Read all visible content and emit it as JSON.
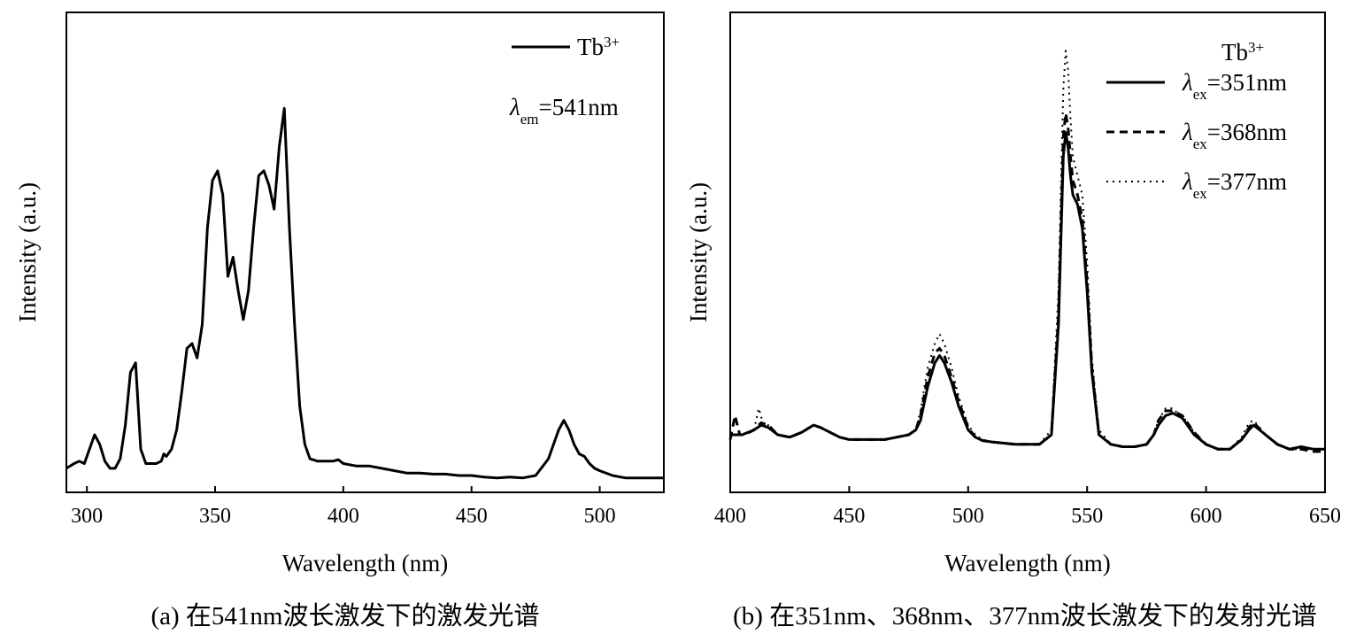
{
  "chart_data": [
    {
      "type": "line",
      "panel": "a",
      "xlabel": "Wavelength (nm)",
      "ylabel": "Intensity (a.u.)",
      "xlim": [
        292,
        525
      ],
      "ylim": [
        0,
        1.0
      ],
      "xticks": [
        300,
        350,
        400,
        450,
        500
      ],
      "y_tick_labels": false,
      "legend": {
        "placement": "top-right",
        "entries": [
          {
            "base": "Tb",
            "sup": "3+",
            "dash": "solid"
          }
        ],
        "note": {
          "symbol": "λ",
          "sub": "em",
          "value": "=541nm"
        }
      },
      "caption": "(a) 在541nm波长激发下的激发光谱",
      "series": [
        {
          "dash": "solid",
          "x": [
            292,
            295,
            297,
            299,
            301,
            303,
            305,
            307,
            309,
            311,
            313,
            315,
            317,
            319,
            321,
            323,
            325,
            327,
            329,
            330,
            331,
            333,
            335,
            337,
            339,
            341,
            343,
            345,
            347,
            349,
            351,
            353,
            355,
            357,
            359,
            361,
            363,
            365,
            367,
            369,
            371,
            373,
            375,
            377,
            379,
            381,
            383,
            385,
            387,
            390,
            393,
            396,
            398,
            400,
            405,
            410,
            415,
            420,
            425,
            430,
            435,
            440,
            445,
            450,
            455,
            460,
            465,
            470,
            475,
            480,
            482,
            484,
            486,
            488,
            490,
            492,
            494,
            496,
            498,
            500,
            505,
            510,
            515,
            520,
            525
          ],
          "y": [
            0.05,
            0.06,
            0.065,
            0.06,
            0.09,
            0.12,
            0.1,
            0.065,
            0.05,
            0.05,
            0.07,
            0.14,
            0.25,
            0.27,
            0.09,
            0.06,
            0.06,
            0.06,
            0.065,
            0.08,
            0.075,
            0.09,
            0.13,
            0.21,
            0.3,
            0.31,
            0.28,
            0.35,
            0.55,
            0.65,
            0.67,
            0.62,
            0.45,
            0.49,
            0.42,
            0.36,
            0.42,
            0.55,
            0.66,
            0.67,
            0.64,
            0.59,
            0.72,
            0.8,
            0.55,
            0.35,
            0.18,
            0.1,
            0.07,
            0.065,
            0.065,
            0.065,
            0.068,
            0.06,
            0.055,
            0.055,
            0.05,
            0.045,
            0.04,
            0.04,
            0.038,
            0.038,
            0.035,
            0.035,
            0.032,
            0.03,
            0.032,
            0.03,
            0.035,
            0.07,
            0.1,
            0.13,
            0.15,
            0.13,
            0.1,
            0.08,
            0.075,
            0.06,
            0.05,
            0.045,
            0.035,
            0.03,
            0.03,
            0.03,
            0.03
          ]
        }
      ]
    },
    {
      "type": "line",
      "panel": "b",
      "xlabel": "Wavelength (nm)",
      "ylabel": "Intensity (a.u.)",
      "xlim": [
        400,
        650
      ],
      "ylim": [
        0,
        1.0
      ],
      "xticks": [
        400,
        450,
        500,
        550,
        600,
        650
      ],
      "y_tick_labels": false,
      "legend": {
        "placement": "top-right",
        "title": {
          "base": "Tb",
          "sup": "3+"
        },
        "entries": [
          {
            "symbol": "λ",
            "sub": "ex",
            "value": "=351nm",
            "dash": "solid"
          },
          {
            "symbol": "λ",
            "sub": "ex",
            "value": "=368nm",
            "dash": "dashed"
          },
          {
            "symbol": "λ",
            "sub": "ex",
            "value": "=377nm",
            "dash": "dotted"
          }
        ]
      },
      "caption": "(b) 在351nm、368nm、377nm波长激发下的发射光谱",
      "series": [
        {
          "dash": "solid",
          "x": [
            400,
            405,
            410,
            413,
            416,
            420,
            425,
            430,
            435,
            438,
            442,
            446,
            450,
            455,
            460,
            465,
            470,
            475,
            478,
            480,
            483,
            486,
            488,
            490,
            493,
            496,
            500,
            503,
            506,
            510,
            520,
            530,
            535,
            538,
            540,
            541,
            542,
            543,
            544,
            546,
            548,
            550,
            552,
            555,
            560,
            565,
            570,
            575,
            578,
            580,
            583,
            586,
            588,
            590,
            595,
            600,
            605,
            610,
            615,
            618,
            620,
            625,
            630,
            635,
            640,
            645,
            650
          ],
          "y": [
            0.12,
            0.12,
            0.13,
            0.14,
            0.135,
            0.12,
            0.115,
            0.125,
            0.14,
            0.135,
            0.125,
            0.115,
            0.11,
            0.11,
            0.11,
            0.11,
            0.115,
            0.12,
            0.13,
            0.15,
            0.22,
            0.27,
            0.285,
            0.27,
            0.23,
            0.18,
            0.13,
            0.115,
            0.108,
            0.105,
            0.1,
            0.1,
            0.12,
            0.35,
            0.7,
            0.75,
            0.72,
            0.66,
            0.62,
            0.6,
            0.55,
            0.42,
            0.25,
            0.12,
            0.1,
            0.095,
            0.095,
            0.1,
            0.12,
            0.14,
            0.16,
            0.165,
            0.16,
            0.155,
            0.12,
            0.1,
            0.09,
            0.09,
            0.11,
            0.13,
            0.14,
            0.12,
            0.1,
            0.09,
            0.095,
            0.09,
            0.09
          ]
        },
        {
          "dash": "dashed",
          "x": [
            400,
            402,
            404,
            406,
            410,
            413,
            416,
            420,
            425,
            430,
            435,
            438,
            442,
            446,
            450,
            455,
            460,
            465,
            470,
            475,
            478,
            480,
            483,
            486,
            488,
            490,
            493,
            496,
            500,
            503,
            506,
            510,
            520,
            530,
            535,
            538,
            540,
            541,
            542,
            543,
            544,
            546,
            548,
            550,
            552,
            555,
            560,
            565,
            570,
            575,
            578,
            580,
            583,
            586,
            588,
            590,
            595,
            600,
            605,
            610,
            615,
            618,
            620,
            625,
            630,
            635,
            640,
            645,
            650
          ],
          "y": [
            0.11,
            0.16,
            0.12,
            0.12,
            0.13,
            0.145,
            0.14,
            0.12,
            0.115,
            0.125,
            0.14,
            0.135,
            0.125,
            0.115,
            0.11,
            0.11,
            0.11,
            0.11,
            0.115,
            0.12,
            0.13,
            0.16,
            0.24,
            0.29,
            0.3,
            0.285,
            0.24,
            0.19,
            0.135,
            0.115,
            0.108,
            0.105,
            0.1,
            0.1,
            0.12,
            0.37,
            0.74,
            0.79,
            0.76,
            0.7,
            0.65,
            0.62,
            0.57,
            0.44,
            0.26,
            0.12,
            0.1,
            0.095,
            0.095,
            0.1,
            0.12,
            0.15,
            0.17,
            0.17,
            0.165,
            0.16,
            0.125,
            0.1,
            0.09,
            0.09,
            0.11,
            0.135,
            0.145,
            0.12,
            0.1,
            0.09,
            0.09,
            0.085,
            0.085
          ]
        },
        {
          "dash": "dotted",
          "x": [
            400,
            405,
            410,
            412,
            414,
            416,
            420,
            425,
            430,
            435,
            438,
            442,
            446,
            450,
            455,
            460,
            465,
            470,
            475,
            478,
            480,
            483,
            486,
            488,
            490,
            493,
            496,
            500,
            503,
            506,
            510,
            520,
            530,
            535,
            538,
            540,
            541,
            542,
            543,
            544,
            546,
            548,
            550,
            552,
            555,
            560,
            565,
            570,
            575,
            578,
            580,
            583,
            586,
            588,
            590,
            595,
            600,
            605,
            610,
            615,
            618,
            620,
            625,
            630,
            635,
            640,
            645,
            650
          ],
          "y": [
            0.12,
            0.12,
            0.13,
            0.175,
            0.14,
            0.14,
            0.12,
            0.115,
            0.125,
            0.14,
            0.135,
            0.125,
            0.115,
            0.11,
            0.11,
            0.11,
            0.11,
            0.115,
            0.12,
            0.13,
            0.17,
            0.26,
            0.31,
            0.33,
            0.31,
            0.26,
            0.2,
            0.14,
            0.12,
            0.11,
            0.105,
            0.1,
            0.1,
            0.13,
            0.42,
            0.84,
            0.92,
            0.88,
            0.78,
            0.7,
            0.66,
            0.62,
            0.48,
            0.28,
            0.13,
            0.1,
            0.095,
            0.095,
            0.1,
            0.12,
            0.15,
            0.175,
            0.175,
            0.165,
            0.16,
            0.125,
            0.1,
            0.09,
            0.09,
            0.115,
            0.145,
            0.15,
            0.12,
            0.1,
            0.09,
            0.09,
            0.09,
            0.09
          ]
        }
      ]
    }
  ]
}
